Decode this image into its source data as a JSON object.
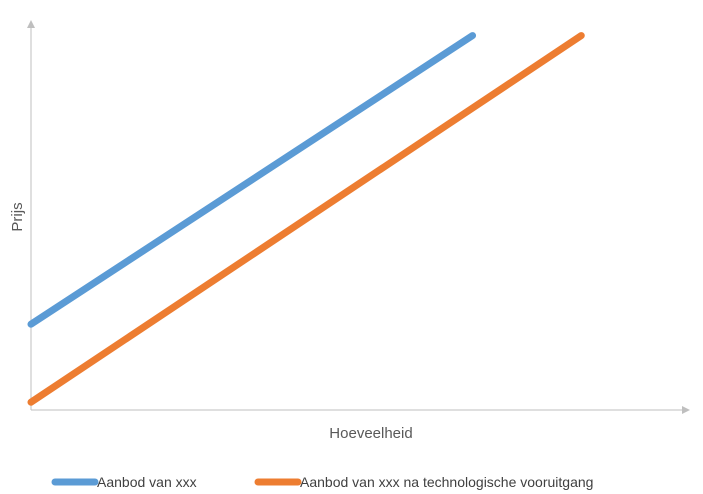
{
  "chart_data": {
    "type": "line",
    "title": "",
    "xlabel": "Hoeveelheid",
    "ylabel": "Prijs",
    "x": [
      0,
      1
    ],
    "xlim": [
      0,
      1
    ],
    "ylim": [
      0,
      1
    ],
    "grid": false,
    "legend_position": "bottom",
    "series": [
      {
        "name": "Aanbod van xxx",
        "color": "#5B9BD5",
        "points": [
          [
            0.0,
            0.22
          ],
          [
            0.67,
            0.96
          ]
        ]
      },
      {
        "name": "Aanbod van xxx na technologische vooruitgang",
        "color": "#ED7D31",
        "points": [
          [
            0.0,
            0.02
          ],
          [
            0.835,
            0.96
          ]
        ]
      }
    ],
    "axis_color": "#BFBFBF"
  }
}
